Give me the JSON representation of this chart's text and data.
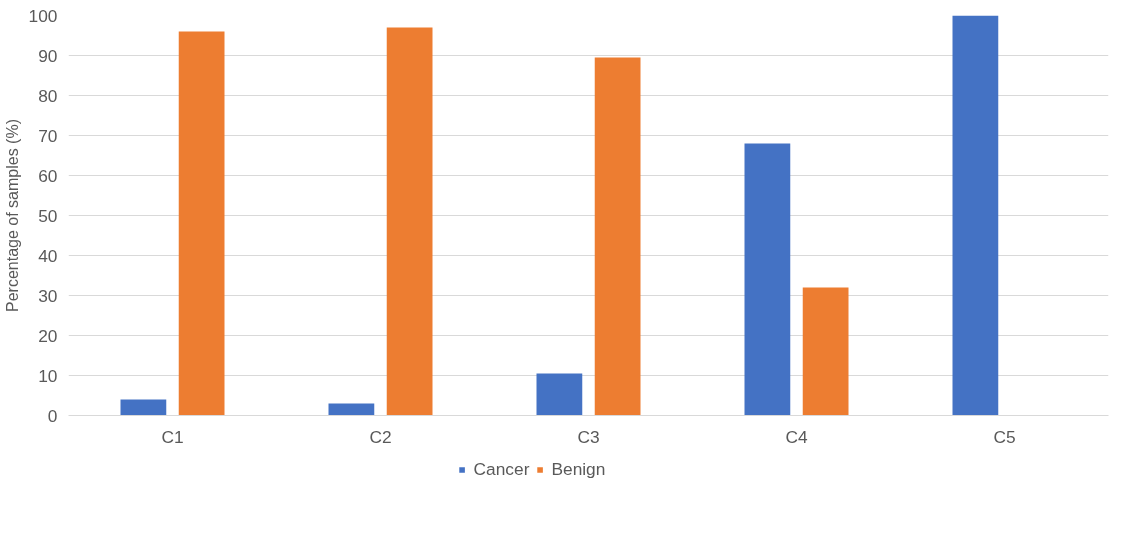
{
  "chart_data": {
    "type": "bar",
    "ylabel": "Percentage of samples (%)",
    "categories": [
      "C1",
      "C2",
      "C3",
      "C4",
      "C5"
    ],
    "series": [
      {
        "name": "Cancer",
        "color": "#4472c4",
        "values": [
          4,
          3,
          10.5,
          68,
          100
        ]
      },
      {
        "name": "Benign",
        "color": "#ed7d31",
        "values": [
          96,
          97,
          89.5,
          32,
          0
        ]
      }
    ],
    "ylim": [
      0,
      100
    ],
    "yticks": [
      0,
      10,
      20,
      30,
      40,
      50,
      60,
      70,
      80,
      90,
      100
    ],
    "grid": "y",
    "legend": "bottom"
  }
}
